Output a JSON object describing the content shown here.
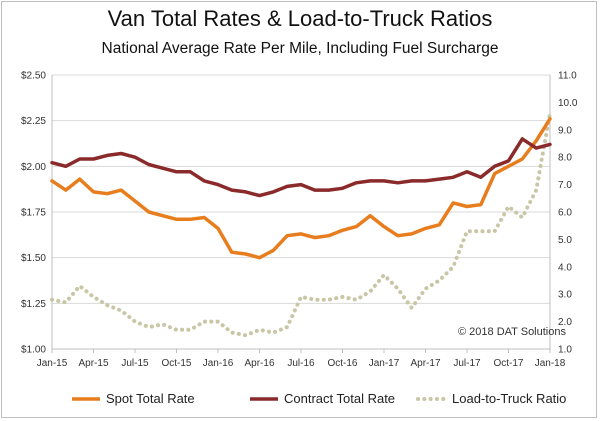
{
  "chart_data": {
    "type": "line",
    "title": "Van Total Rates & Load-to-Truck Ratios",
    "subtitle": "National Average Rate Per Mile, Including Fuel Surcharge",
    "credit": "© 2018 DAT Solutions",
    "x": [
      "Jan-15",
      "Feb-15",
      "Mar-15",
      "Apr-15",
      "May-15",
      "Jun-15",
      "Jul-15",
      "Aug-15",
      "Sep-15",
      "Oct-15",
      "Nov-15",
      "Dec-15",
      "Jan-16",
      "Feb-16",
      "Mar-16",
      "Apr-16",
      "May-16",
      "Jun-16",
      "Jul-16",
      "Aug-16",
      "Sep-16",
      "Oct-16",
      "Nov-16",
      "Dec-16",
      "Jan-17",
      "Feb-17",
      "Mar-17",
      "Apr-17",
      "May-17",
      "Jun-17",
      "Jul-17",
      "Aug-17",
      "Sep-17",
      "Oct-17",
      "Nov-17",
      "Dec-17",
      "Jan-18"
    ],
    "x_tick_labels": [
      "Jan-15",
      "Apr-15",
      "Jul-15",
      "Oct-15",
      "Jan-16",
      "Apr-16",
      "Jul-16",
      "Oct-16",
      "Jan-17",
      "Apr-17",
      "Jul-17",
      "Oct-17",
      "Jan-18"
    ],
    "y_left": {
      "ylim": [
        1.0,
        2.5
      ],
      "ticks": [
        "$1.00",
        "$1.25",
        "$1.50",
        "$1.75",
        "$2.00",
        "$2.25",
        "$2.50"
      ]
    },
    "y_right": {
      "ylim": [
        1.0,
        11.0
      ],
      "ticks": [
        "1.0",
        "2.0",
        "3.0",
        "4.0",
        "5.0",
        "6.0",
        "7.0",
        "8.0",
        "9.0",
        "10.0",
        "11.0"
      ]
    },
    "grid": true,
    "legend_position": "bottom",
    "series": [
      {
        "name": "Spot Total Rate",
        "axis": "left",
        "color": "#e87d1e",
        "style": "solid",
        "values": [
          1.92,
          1.87,
          1.93,
          1.86,
          1.85,
          1.87,
          1.81,
          1.75,
          1.73,
          1.71,
          1.71,
          1.72,
          1.66,
          1.53,
          1.52,
          1.5,
          1.54,
          1.62,
          1.63,
          1.61,
          1.62,
          1.65,
          1.67,
          1.73,
          1.67,
          1.62,
          1.63,
          1.66,
          1.68,
          1.8,
          1.78,
          1.79,
          1.96,
          2.0,
          2.04,
          2.14,
          2.26
        ]
      },
      {
        "name": "Contract Total Rate",
        "axis": "left",
        "color": "#8b2a2a",
        "style": "solid",
        "values": [
          2.02,
          2.0,
          2.04,
          2.04,
          2.06,
          2.07,
          2.05,
          2.01,
          1.99,
          1.97,
          1.97,
          1.92,
          1.9,
          1.87,
          1.86,
          1.84,
          1.86,
          1.89,
          1.9,
          1.87,
          1.87,
          1.88,
          1.91,
          1.92,
          1.92,
          1.91,
          1.92,
          1.92,
          1.93,
          1.94,
          1.97,
          1.94,
          2.0,
          2.03,
          2.15,
          2.1,
          2.12
        ]
      },
      {
        "name": "Load-to-Truck Ratio",
        "axis": "right",
        "color": "#c9c6a6",
        "style": "dotted",
        "values": [
          2.8,
          2.7,
          3.3,
          2.9,
          2.6,
          2.4,
          2.0,
          1.8,
          1.9,
          1.7,
          1.7,
          2.0,
          2.0,
          1.6,
          1.5,
          1.7,
          1.6,
          1.8,
          2.9,
          2.8,
          2.8,
          2.9,
          2.8,
          3.1,
          3.7,
          3.2,
          2.5,
          3.2,
          3.5,
          4.0,
          5.3,
          5.3,
          5.3,
          6.2,
          5.8,
          6.8,
          9.6
        ]
      }
    ]
  }
}
